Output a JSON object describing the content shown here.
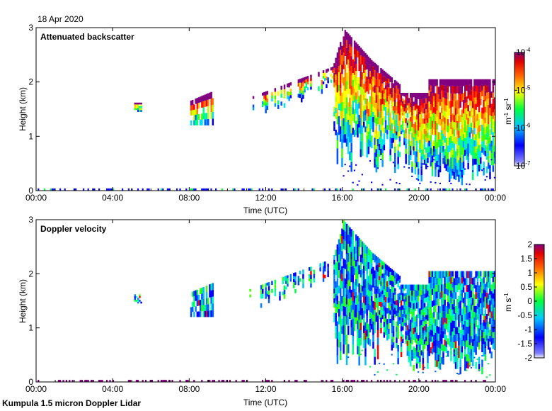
{
  "date_label": "18 Apr 2020",
  "footer_label": "Kumpula 1.5 micron Doppler Lidar",
  "chart_data": [
    {
      "type": "heatmap",
      "title": "Attenuated backscatter",
      "xlabel": "Time (UTC)",
      "ylabel": "Height (km)",
      "xticks": [
        "00:00",
        "04:00",
        "08:00",
        "12:00",
        "16:00",
        "20:00",
        "00:00"
      ],
      "xlim_hours": [
        0,
        24
      ],
      "yticks": [
        "0",
        "1",
        "2",
        "3"
      ],
      "ylim": [
        0,
        3
      ],
      "colorbar": {
        "unit_base": "m",
        "unit_exp1": "-1",
        "unit_mid": " sr",
        "unit_exp2": "-1",
        "scale": "log",
        "ticks": [
          {
            "base": "10",
            "exp": "-4",
            "value": -4
          },
          {
            "base": "10",
            "exp": "-5",
            "value": -5
          },
          {
            "base": "10",
            "exp": "-6",
            "value": -6
          },
          {
            "base": "10",
            "exp": "-7",
            "value": -7
          }
        ],
        "range": [
          -7,
          -4
        ]
      }
    },
    {
      "type": "heatmap",
      "title": "Doppler velocity",
      "xlabel": "Time (UTC)",
      "ylabel": "Height (km)",
      "xticks": [
        "00:00",
        "04:00",
        "08:00",
        "12:00",
        "16:00",
        "20:00",
        "00:00"
      ],
      "xlim_hours": [
        0,
        24
      ],
      "yticks": [
        "0",
        "1",
        "2",
        "3"
      ],
      "ylim": [
        0,
        3
      ],
      "colorbar": {
        "unit_base": "m s",
        "unit_exp1": "-1",
        "scale": "linear",
        "ticks": [
          "2",
          "1.5",
          "1",
          "0.5",
          "0",
          "-0.5",
          "-1",
          "-1.5",
          "-2"
        ],
        "range": [
          -2,
          2
        ]
      }
    }
  ]
}
